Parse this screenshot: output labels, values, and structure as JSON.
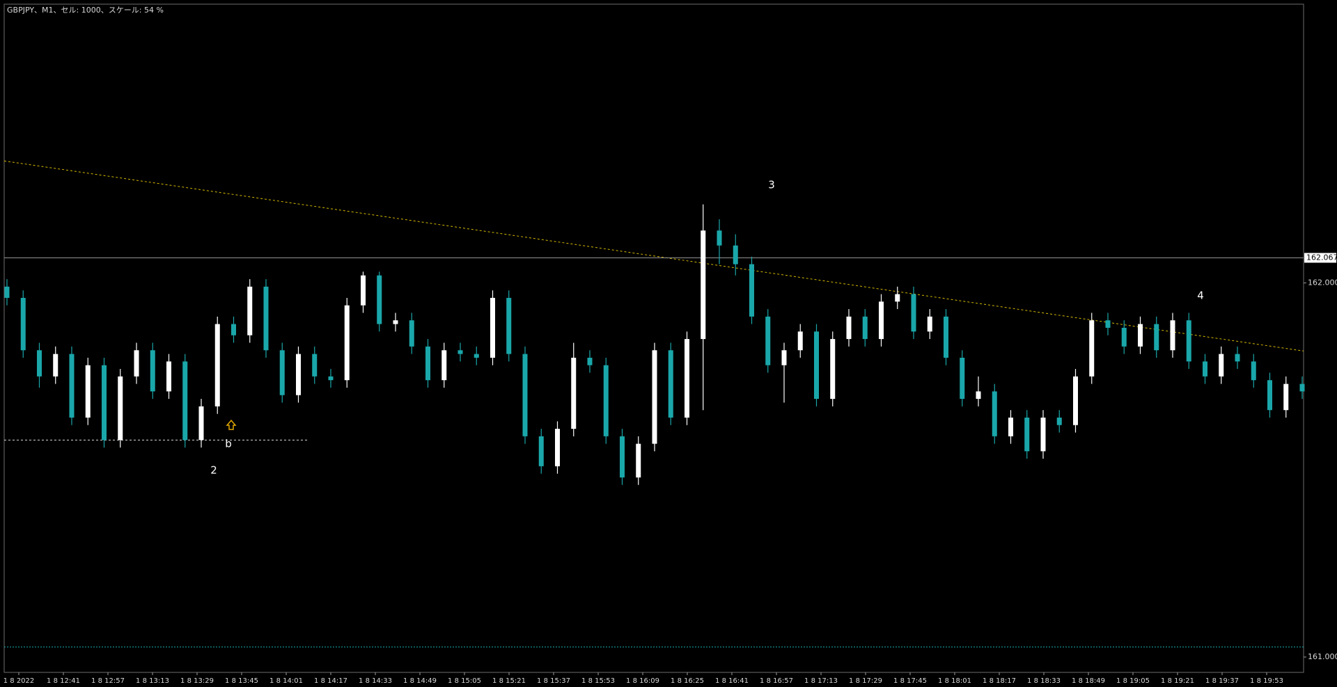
{
  "chart_data": {
    "type": "candlestick",
    "title": "GBPJPY、M1、セル: 1000、スケール: 54 %",
    "ylim": [
      160.959,
      162.745
    ],
    "yticks": [
      {
        "value": 162,
        "label": "162.000"
      },
      {
        "value": 161,
        "label": "161.000"
      }
    ],
    "xticks": [
      "1 8 2022",
      "1 8 12:41",
      "1 8 12:57",
      "1 8 13:13",
      "1 8 13:29",
      "1 8 13:45",
      "1 8 14:01",
      "1 8 14:17",
      "1 8 14:33",
      "1 8 14:49",
      "1 8 15:05",
      "1 8 15:21",
      "1 8 15:37",
      "1 8 15:53",
      "1 8 16:09",
      "1 8 16:25",
      "1 8 16:41",
      "1 8 16:57",
      "1 8 17:13",
      "1 8 17:29",
      "1 8 17:45",
      "1 8 18:01",
      "1 8 18:17",
      "1 8 18:33",
      "1 8 18:49",
      "1 8 19:05",
      "1 8 19:21",
      "1 8 19:37",
      "1 8 19:53"
    ],
    "up_color": "#ffffff",
    "down_color": "#1aa7aa",
    "open": [
      161.99,
      161.96,
      161.82,
      161.75,
      161.81,
      161.64,
      161.78,
      161.58,
      161.75,
      161.82,
      161.71,
      161.79,
      161.58,
      161.67,
      161.89,
      161.86,
      161.99,
      161.82,
      161.7,
      161.81,
      161.75,
      161.74,
      161.94,
      162.02,
      161.89,
      161.9,
      161.83,
      161.74,
      161.82,
      161.81,
      161.8,
      161.96,
      161.81,
      161.59,
      161.51,
      161.61,
      161.8,
      161.78,
      161.59,
      161.48,
      161.57,
      161.82,
      161.64,
      161.85,
      162.14,
      162.1,
      162.05,
      161.91,
      161.78,
      161.82,
      161.87,
      161.69,
      161.85,
      161.91,
      161.85,
      161.95,
      161.97,
      161.87,
      161.91,
      161.8,
      161.69,
      161.71,
      161.59,
      161.64,
      161.55,
      161.64,
      161.62,
      161.75,
      161.9,
      161.88,
      161.83,
      161.89,
      161.82,
      161.9,
      161.79,
      161.75,
      161.81,
      161.79,
      161.74,
      161.66,
      161.73
    ],
    "high": [
      162.01,
      161.98,
      161.84,
      161.83,
      161.83,
      161.8,
      161.8,
      161.77,
      161.84,
      161.84,
      161.81,
      161.81,
      161.69,
      161.91,
      161.91,
      162.01,
      162.01,
      161.84,
      161.83,
      161.83,
      161.77,
      161.96,
      162.03,
      162.03,
      161.92,
      161.92,
      161.85,
      161.84,
      161.84,
      161.83,
      161.98,
      161.98,
      161.83,
      161.61,
      161.63,
      161.84,
      161.82,
      161.8,
      161.61,
      161.59,
      161.84,
      161.84,
      161.87,
      162.21,
      162.17,
      162.13,
      162.07,
      161.93,
      161.84,
      161.89,
      161.89,
      161.87,
      161.93,
      161.93,
      161.97,
      161.99,
      161.99,
      161.93,
      161.93,
      161.82,
      161.75,
      161.73,
      161.66,
      161.66,
      161.66,
      161.66,
      161.77,
      161.92,
      161.92,
      161.9,
      161.91,
      161.91,
      161.92,
      161.92,
      161.81,
      161.83,
      161.83,
      161.81,
      161.76,
      161.75,
      161.75
    ],
    "low": [
      161.94,
      161.8,
      161.72,
      161.73,
      161.62,
      161.62,
      161.56,
      161.56,
      161.73,
      161.69,
      161.69,
      161.56,
      161.56,
      161.65,
      161.84,
      161.84,
      161.8,
      161.68,
      161.68,
      161.73,
      161.72,
      161.72,
      161.92,
      161.87,
      161.87,
      161.81,
      161.72,
      161.72,
      161.79,
      161.78,
      161.78,
      161.79,
      161.57,
      161.49,
      161.49,
      161.59,
      161.76,
      161.57,
      161.46,
      161.46,
      161.55,
      161.62,
      161.62,
      161.66,
      162.05,
      162.02,
      161.89,
      161.76,
      161.68,
      161.8,
      161.67,
      161.67,
      161.83,
      161.83,
      161.83,
      161.93,
      161.85,
      161.85,
      161.78,
      161.67,
      161.67,
      161.57,
      161.57,
      161.53,
      161.53,
      161.6,
      161.6,
      161.73,
      161.86,
      161.81,
      161.81,
      161.8,
      161.8,
      161.77,
      161.73,
      161.73,
      161.77,
      161.72,
      161.64,
      161.64,
      161.69
    ],
    "close": [
      161.96,
      161.82,
      161.75,
      161.81,
      161.64,
      161.78,
      161.58,
      161.75,
      161.82,
      161.71,
      161.79,
      161.58,
      161.67,
      161.89,
      161.86,
      161.99,
      161.82,
      161.7,
      161.81,
      161.75,
      161.74,
      161.94,
      162.02,
      161.89,
      161.9,
      161.83,
      161.74,
      161.82,
      161.81,
      161.8,
      161.96,
      161.81,
      161.59,
      161.51,
      161.61,
      161.8,
      161.78,
      161.59,
      161.48,
      161.57,
      161.82,
      161.64,
      161.85,
      162.14,
      162.1,
      162.05,
      161.91,
      161.78,
      161.82,
      161.87,
      161.69,
      161.85,
      161.91,
      161.85,
      161.95,
      161.97,
      161.87,
      161.91,
      161.8,
      161.69,
      161.71,
      161.59,
      161.64,
      161.55,
      161.64,
      161.62,
      161.75,
      161.9,
      161.88,
      161.83,
      161.89,
      161.82,
      161.9,
      161.79,
      161.75,
      161.81,
      161.79,
      161.74,
      161.66,
      161.73,
      161.71
    ],
    "current_price": 162.067,
    "current_price_color": "#9a9a9a",
    "trendline": {
      "values": [
        162.326,
        161.818
      ],
      "color": "#d4b800"
    },
    "support_line": {
      "value": 161.58,
      "color": "#e0e0e0"
    },
    "level_line": {
      "value": 161.027,
      "color": "#1aa7aa"
    },
    "annotations": [
      "2",
      "b",
      "3",
      "4"
    ]
  }
}
